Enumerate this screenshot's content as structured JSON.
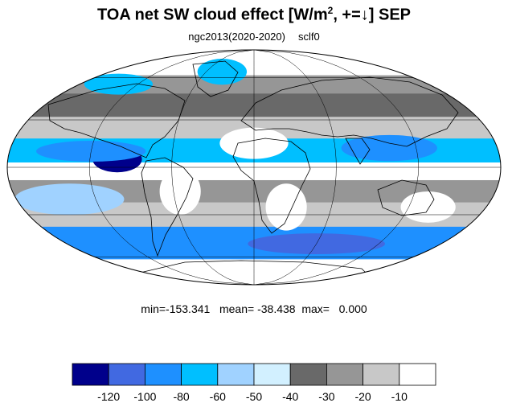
{
  "title": {
    "main": "TOA net SW cloud effect [W/m",
    "superscript": "2",
    "suffix": ", +=↓]  SEP"
  },
  "subtitle": {
    "case": "ngc2013(2020-2020)",
    "variable": "sclf0"
  },
  "stats": {
    "min_label": "min=",
    "min": "-153.341",
    "mean_label": "mean=",
    "mean": "-38.438",
    "max_label": "max=",
    "max": "0.000"
  },
  "legend": {
    "levels": [
      {
        "color": "#00008b"
      },
      {
        "color": "#4169e1"
      },
      {
        "color": "#1e90ff"
      },
      {
        "color": "#00bfff"
      },
      {
        "color": "#a0d2ff"
      },
      {
        "color": "#d2f0ff"
      },
      {
        "color": "#696969"
      },
      {
        "color": "#969696"
      },
      {
        "color": "#c8c8c8"
      },
      {
        "color": "#ffffff"
      }
    ],
    "tick_labels": [
      "-120",
      "-100",
      "-80",
      "-60",
      "-50",
      "-40",
      "-30",
      "-20",
      "-10"
    ]
  },
  "map": {
    "projection": "mollweide",
    "graticule": "on",
    "bands": [
      {
        "lat_from": 90,
        "lat_to": 62,
        "color": "#ffffff"
      },
      {
        "lat_from": 62,
        "lat_to": 48,
        "color": "#969696"
      },
      {
        "lat_from": 48,
        "lat_to": 32,
        "color": "#696969"
      },
      {
        "lat_from": 32,
        "lat_to": 18,
        "color": "#c8c8c8"
      },
      {
        "lat_from": 18,
        "lat_to": 3,
        "color": "#00bfff"
      },
      {
        "lat_from": 3,
        "lat_to": -8,
        "color": "#ffffff"
      },
      {
        "lat_from": -8,
        "lat_to": -22,
        "color": "#969696"
      },
      {
        "lat_from": -22,
        "lat_to": -38,
        "color": "#c8c8c8"
      },
      {
        "lat_from": -38,
        "lat_to": -62,
        "color": "#1e90ff"
      },
      {
        "lat_from": -62,
        "lat_to": -90,
        "color": "#ffffff"
      }
    ],
    "patches": [
      {
        "lon": -100,
        "lat": 5,
        "rx": 18,
        "ry": 10,
        "color": "#00008b"
      },
      {
        "lon": -120,
        "lat": 10,
        "rx": 40,
        "ry": 8,
        "color": "#1e90ff"
      },
      {
        "lon": 100,
        "lat": 12,
        "rx": 35,
        "ry": 10,
        "color": "#1e90ff"
      },
      {
        "lon": -140,
        "lat": 55,
        "rx": 25,
        "ry": 8,
        "color": "#00bfff"
      },
      {
        "lon": 0,
        "lat": 15,
        "rx": 25,
        "ry": 12,
        "color": "#ffffff"
      },
      {
        "lon": 25,
        "lat": -25,
        "rx": 15,
        "ry": 18,
        "color": "#ffffff"
      },
      {
        "lon": -55,
        "lat": -15,
        "rx": 15,
        "ry": 18,
        "color": "#ffffff"
      },
      {
        "lon": 135,
        "lat": -25,
        "rx": 20,
        "ry": 12,
        "color": "#ffffff"
      },
      {
        "lon": -140,
        "lat": -20,
        "rx": 40,
        "ry": 12,
        "color": "#a0d2ff"
      },
      {
        "lon": 60,
        "lat": -50,
        "rx": 50,
        "ry": 8,
        "color": "#4169e1"
      },
      {
        "lon": -40,
        "lat": 65,
        "rx": 18,
        "ry": 10,
        "color": "#00bfff"
      }
    ]
  }
}
